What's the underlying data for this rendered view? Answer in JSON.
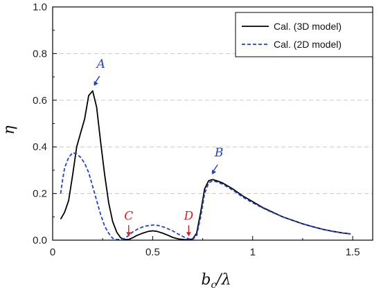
{
  "chart_data": {
    "type": "line",
    "title": "",
    "xlabel_main": "b",
    "xlabel_sub": "c",
    "xlabel_rest": "/λ",
    "ylabel": "η",
    "xlim": [
      0,
      1.6
    ],
    "ylim": [
      0,
      1.0
    ],
    "x_ticks": [
      0,
      0.5,
      1,
      1.5
    ],
    "x_tick_labels": [
      "0",
      "0.5",
      "1",
      "1.5"
    ],
    "y_ticks": [
      0,
      0.2,
      0.4,
      0.6,
      0.8,
      1.0
    ],
    "y_tick_labels": [
      "0.0",
      "0.2",
      "0.4",
      "0.6",
      "0.8",
      "1.0"
    ],
    "grid": "horizontal dashed",
    "legend_position": "top-right",
    "series": [
      {
        "name": "Cal. (3D model)",
        "color": "#000000",
        "style": "solid",
        "x": [
          0.04,
          0.06,
          0.08,
          0.1,
          0.12,
          0.14,
          0.16,
          0.18,
          0.2,
          0.22,
          0.24,
          0.26,
          0.28,
          0.3,
          0.32,
          0.34,
          0.36,
          0.38,
          0.4,
          0.42,
          0.45,
          0.48,
          0.5,
          0.52,
          0.55,
          0.58,
          0.6,
          0.63,
          0.66,
          0.68,
          0.7,
          0.72,
          0.74,
          0.76,
          0.78,
          0.8,
          0.82,
          0.85,
          0.9,
          0.95,
          1.0,
          1.05,
          1.1,
          1.15,
          1.2,
          1.25,
          1.3,
          1.35,
          1.4,
          1.45,
          1.49
        ],
        "y": [
          0.09,
          0.12,
          0.17,
          0.28,
          0.4,
          0.46,
          0.52,
          0.62,
          0.64,
          0.57,
          0.42,
          0.28,
          0.16,
          0.08,
          0.035,
          0.01,
          0.003,
          0.003,
          0.01,
          0.02,
          0.03,
          0.038,
          0.04,
          0.038,
          0.03,
          0.02,
          0.012,
          0.005,
          0.002,
          0.002,
          0.005,
          0.03,
          0.12,
          0.22,
          0.255,
          0.26,
          0.255,
          0.245,
          0.22,
          0.19,
          0.165,
          0.14,
          0.12,
          0.1,
          0.085,
          0.07,
          0.058,
          0.047,
          0.038,
          0.031,
          0.027
        ]
      },
      {
        "name": "Cal. (2D model)",
        "color": "#1f3fd6",
        "style": "dashed",
        "x": [
          0.04,
          0.05,
          0.06,
          0.08,
          0.1,
          0.12,
          0.14,
          0.16,
          0.18,
          0.2,
          0.22,
          0.24,
          0.26,
          0.28,
          0.3,
          0.32,
          0.34,
          0.36,
          0.38,
          0.4,
          0.43,
          0.46,
          0.5,
          0.53,
          0.56,
          0.6,
          0.63,
          0.66,
          0.68,
          0.7,
          0.72,
          0.74,
          0.76,
          0.78,
          0.8,
          0.82,
          0.85,
          0.9,
          0.95,
          1.0,
          1.05,
          1.1,
          1.15,
          1.2,
          1.25,
          1.3,
          1.35,
          1.4,
          1.45,
          1.49
        ],
        "y": [
          0.2,
          0.26,
          0.31,
          0.355,
          0.375,
          0.37,
          0.355,
          0.33,
          0.29,
          0.23,
          0.17,
          0.11,
          0.06,
          0.03,
          0.008,
          0.003,
          0.003,
          0.008,
          0.02,
          0.035,
          0.05,
          0.06,
          0.065,
          0.063,
          0.055,
          0.04,
          0.025,
          0.012,
          0.006,
          0.003,
          0.02,
          0.1,
          0.2,
          0.245,
          0.255,
          0.25,
          0.24,
          0.215,
          0.185,
          0.16,
          0.138,
          0.118,
          0.1,
          0.085,
          0.07,
          0.058,
          0.047,
          0.038,
          0.031,
          0.026
        ]
      }
    ],
    "annotations": [
      {
        "label": "A",
        "x": 0.2,
        "y": 0.65,
        "color": "#1f3fd6",
        "direction": "down-left"
      },
      {
        "label": "B",
        "x": 0.79,
        "y": 0.27,
        "color": "#1f3fd6",
        "direction": "down-left"
      },
      {
        "label": "C",
        "x": 0.38,
        "y": 0.005,
        "color": "#e02020",
        "direction": "down"
      },
      {
        "label": "D",
        "x": 0.68,
        "y": 0.005,
        "color": "#e02020",
        "direction": "down"
      }
    ]
  }
}
